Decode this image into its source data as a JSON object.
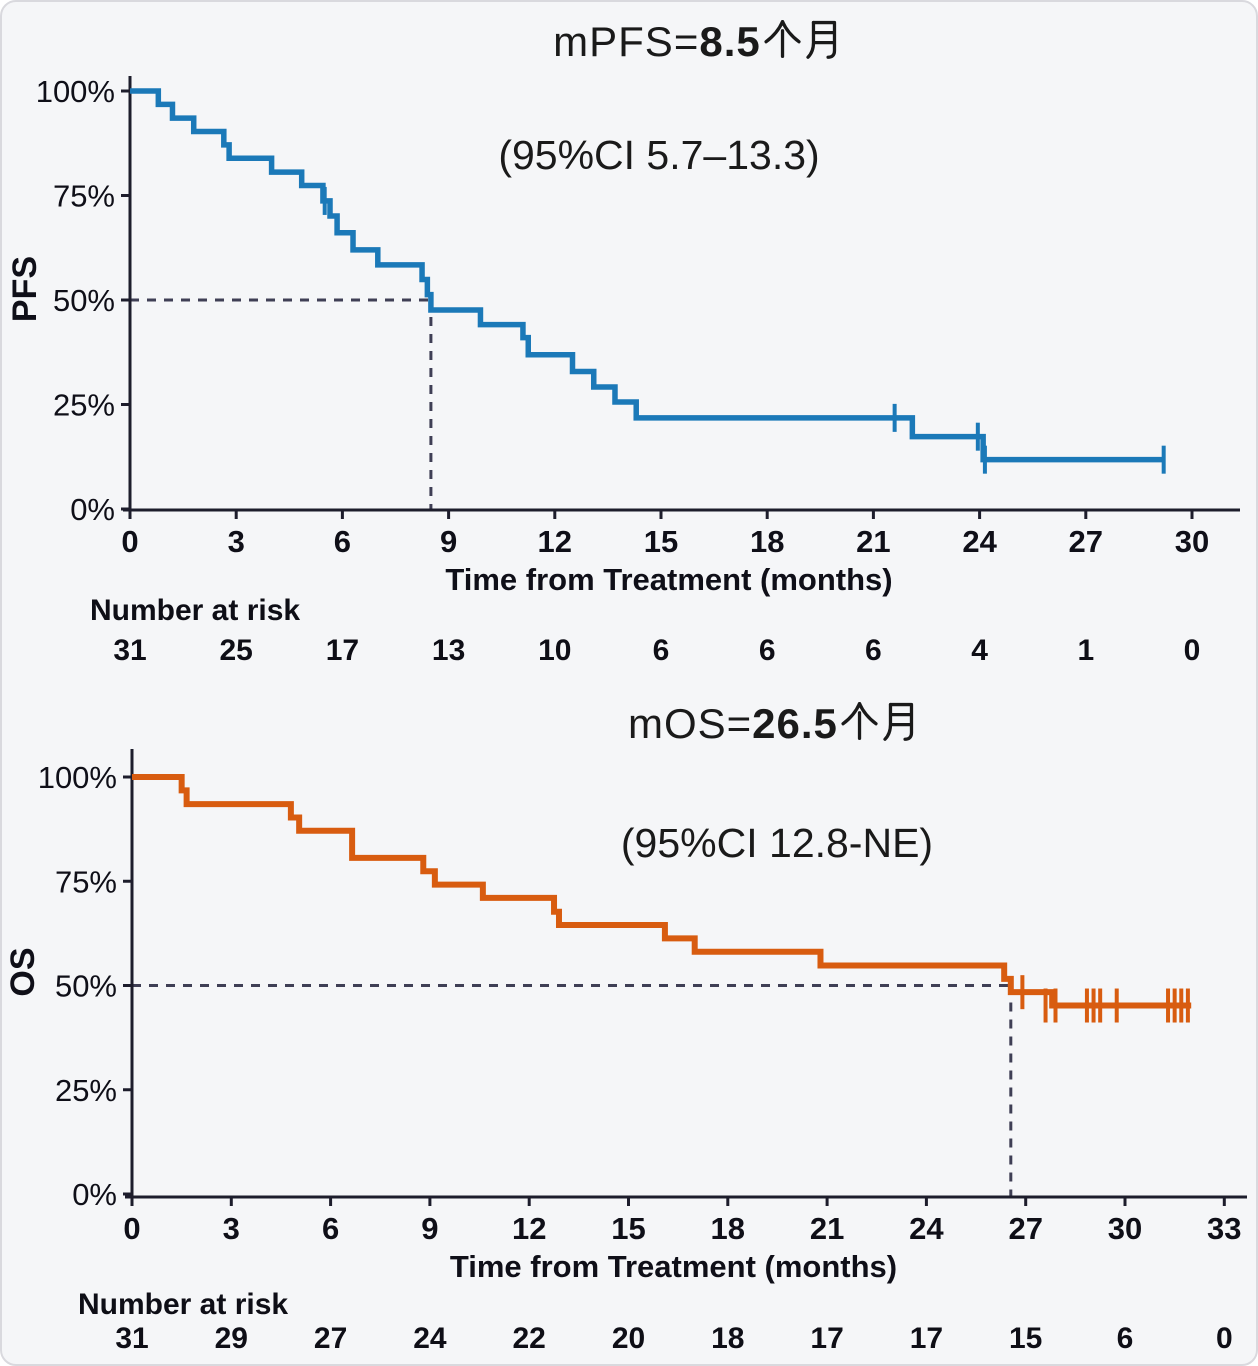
{
  "figure": {
    "risk_heading": "Number at risk"
  },
  "chart_data": [
    {
      "type": "km-step",
      "name": "PFS",
      "title": {
        "prefix": "mPFS=",
        "value": "8.5",
        "suffix": "个月"
      },
      "subtitle": "(95%CI 5.7–13.3)",
      "ylabel": "PFS",
      "xlabel": "Time from Treatment (months)",
      "color": "#1b79b8",
      "median_months": 8.5,
      "ci_text": "95%CI 5.7–13.3",
      "xlim": [
        0,
        31
      ],
      "ylim": [
        0,
        100
      ],
      "x_ticks": [
        0,
        3,
        6,
        9,
        12,
        15,
        18,
        21,
        24,
        27,
        30
      ],
      "y_ticks": [
        0,
        25,
        50,
        75,
        100
      ],
      "steps": [
        [
          0,
          100
        ],
        [
          0.8,
          96.8
        ],
        [
          1.2,
          93.5
        ],
        [
          1.8,
          90.3
        ],
        [
          2.65,
          87.1
        ],
        [
          2.8,
          83.9
        ],
        [
          4.0,
          80.6
        ],
        [
          4.85,
          77.4
        ],
        [
          5.45,
          73.7
        ],
        [
          5.65,
          70.1
        ],
        [
          5.85,
          66.1
        ],
        [
          6.3,
          62.0
        ],
        [
          7.0,
          58.4
        ],
        [
          8.25,
          54.9
        ],
        [
          8.4,
          51.3
        ],
        [
          8.5,
          47.6
        ],
        [
          9.9,
          44.1
        ],
        [
          11.1,
          41.0
        ],
        [
          11.25,
          36.9
        ],
        [
          12.5,
          32.9
        ],
        [
          13.1,
          29.2
        ],
        [
          13.7,
          25.6
        ],
        [
          14.3,
          21.8
        ],
        [
          22.1,
          17.3
        ],
        [
          24.1,
          11.8
        ]
      ],
      "end_time": 29.2,
      "censors": [
        [
          5.5,
          73.7
        ],
        [
          21.6,
          21.8
        ],
        [
          23.95,
          17.3
        ],
        [
          24.15,
          11.8
        ],
        [
          29.2,
          11.8
        ]
      ],
      "risk_values": [
        31,
        25,
        17,
        13,
        10,
        6,
        6,
        6,
        4,
        1,
        0
      ]
    },
    {
      "type": "km-step",
      "name": "OS",
      "title": {
        "prefix": "mOS=",
        "value": "26.5",
        "suffix": "个月"
      },
      "subtitle": "(95%CI 12.8-NE)",
      "ylabel": "OS",
      "xlabel": "Time from Treatment (months)",
      "color": "#d85c10",
      "median_months": 26.5,
      "ci_text": "95%CI 12.8-NE",
      "xlim": [
        0,
        33.5
      ],
      "ylim": [
        0,
        100
      ],
      "x_ticks": [
        0,
        3,
        6,
        9,
        12,
        15,
        18,
        21,
        24,
        27,
        30,
        33
      ],
      "y_ticks": [
        0,
        25,
        50,
        75,
        100
      ],
      "steps": [
        [
          0,
          100
        ],
        [
          1.5,
          96.8
        ],
        [
          1.65,
          93.5
        ],
        [
          4.8,
          90.3
        ],
        [
          5.05,
          87.1
        ],
        [
          6.65,
          80.6
        ],
        [
          8.8,
          77.4
        ],
        [
          9.15,
          74.2
        ],
        [
          10.6,
          71.0
        ],
        [
          12.75,
          67.7
        ],
        [
          12.9,
          64.5
        ],
        [
          16.1,
          61.3
        ],
        [
          17.0,
          58.1
        ],
        [
          20.8,
          54.8
        ],
        [
          26.35,
          51.6
        ],
        [
          26.55,
          48.4
        ],
        [
          27.8,
          45.2
        ]
      ],
      "end_time": 32.0,
      "censors": [
        [
          26.9,
          48.4
        ],
        [
          27.6,
          45.2
        ],
        [
          27.9,
          45.2
        ],
        [
          28.85,
          45.2
        ],
        [
          29.05,
          45.2
        ],
        [
          29.25,
          45.2
        ],
        [
          29.75,
          45.2
        ],
        [
          31.3,
          45.2
        ],
        [
          31.5,
          45.2
        ],
        [
          31.7,
          45.2
        ],
        [
          31.9,
          45.2
        ]
      ],
      "risk_values": [
        31,
        29,
        27,
        24,
        22,
        20,
        18,
        17,
        17,
        15,
        6,
        0
      ]
    }
  ]
}
